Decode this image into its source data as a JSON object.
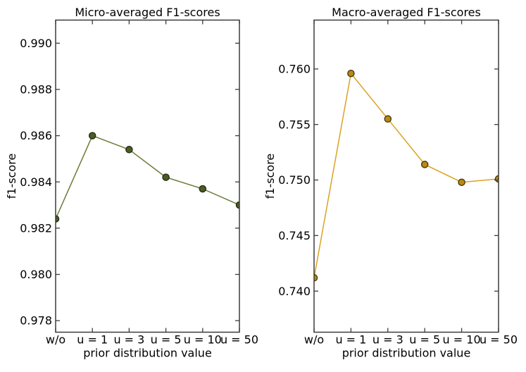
{
  "figure": {
    "background": "#ffffff"
  },
  "chart_data": [
    {
      "id": "micro-averaged-f1",
      "type": "line",
      "title": "Micro-averaged F1-scores",
      "xlabel": "prior distribution value",
      "ylabel": "f1-score",
      "categories": [
        "w/o",
        "u = 1",
        "u = 3",
        "u = 5",
        "u = 10",
        "u = 50"
      ],
      "values": [
        0.9824,
        0.986,
        0.9854,
        0.9842,
        0.9837,
        0.983
      ],
      "ylim": [
        0.9775,
        0.991
      ],
      "ytick_labels": [
        "0.978",
        "0.980",
        "0.982",
        "0.984",
        "0.986",
        "0.988",
        "0.990"
      ],
      "grid": false,
      "legend": null,
      "line_color": "#6b7b35",
      "marker_color": "#4d5b26",
      "marker_edge_color": "#1f2910"
    },
    {
      "id": "macro-averaged-f1",
      "type": "line",
      "title": "Macro-averaged F1-scores",
      "xlabel": "prior distribution value",
      "ylabel": "f1-score",
      "categories": [
        "w/o",
        "u = 1",
        "u = 3",
        "u = 5",
        "u = 10",
        "u = 50"
      ],
      "values": [
        0.7412,
        0.7596,
        0.7555,
        0.7514,
        0.7498,
        0.7501
      ],
      "ylim": [
        0.7363,
        0.7644
      ],
      "ytick_labels": [
        "0.740",
        "0.745",
        "0.750",
        "0.755",
        "0.760"
      ],
      "grid": false,
      "legend": null,
      "line_color": "#d8a322",
      "marker_color": "#ba890f",
      "marker_edge_color": "#3c3214"
    }
  ]
}
